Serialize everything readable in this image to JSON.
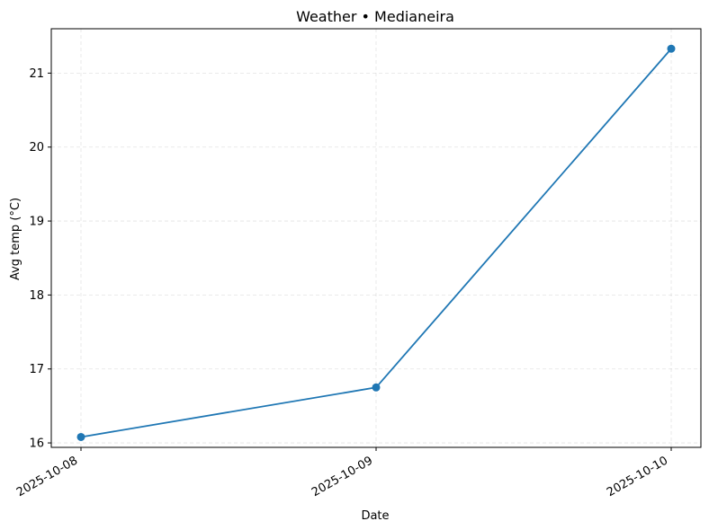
{
  "chart_data": {
    "type": "line",
    "title": "Weather • Medianeira",
    "xlabel": "Date",
    "ylabel": "Avg temp (°C)",
    "x": [
      "2025-10-08",
      "2025-10-09",
      "2025-10-10"
    ],
    "series": [
      {
        "values": [
          16.08,
          16.75,
          21.33
        ],
        "color": "#1f77b4",
        "marker": "circle"
      }
    ],
    "yticks": [
      "16",
      "17",
      "18",
      "19",
      "20",
      "21"
    ],
    "ylim": [
      15.94,
      21.6
    ],
    "grid": true,
    "grid_style": "dashed",
    "legend": "none"
  }
}
